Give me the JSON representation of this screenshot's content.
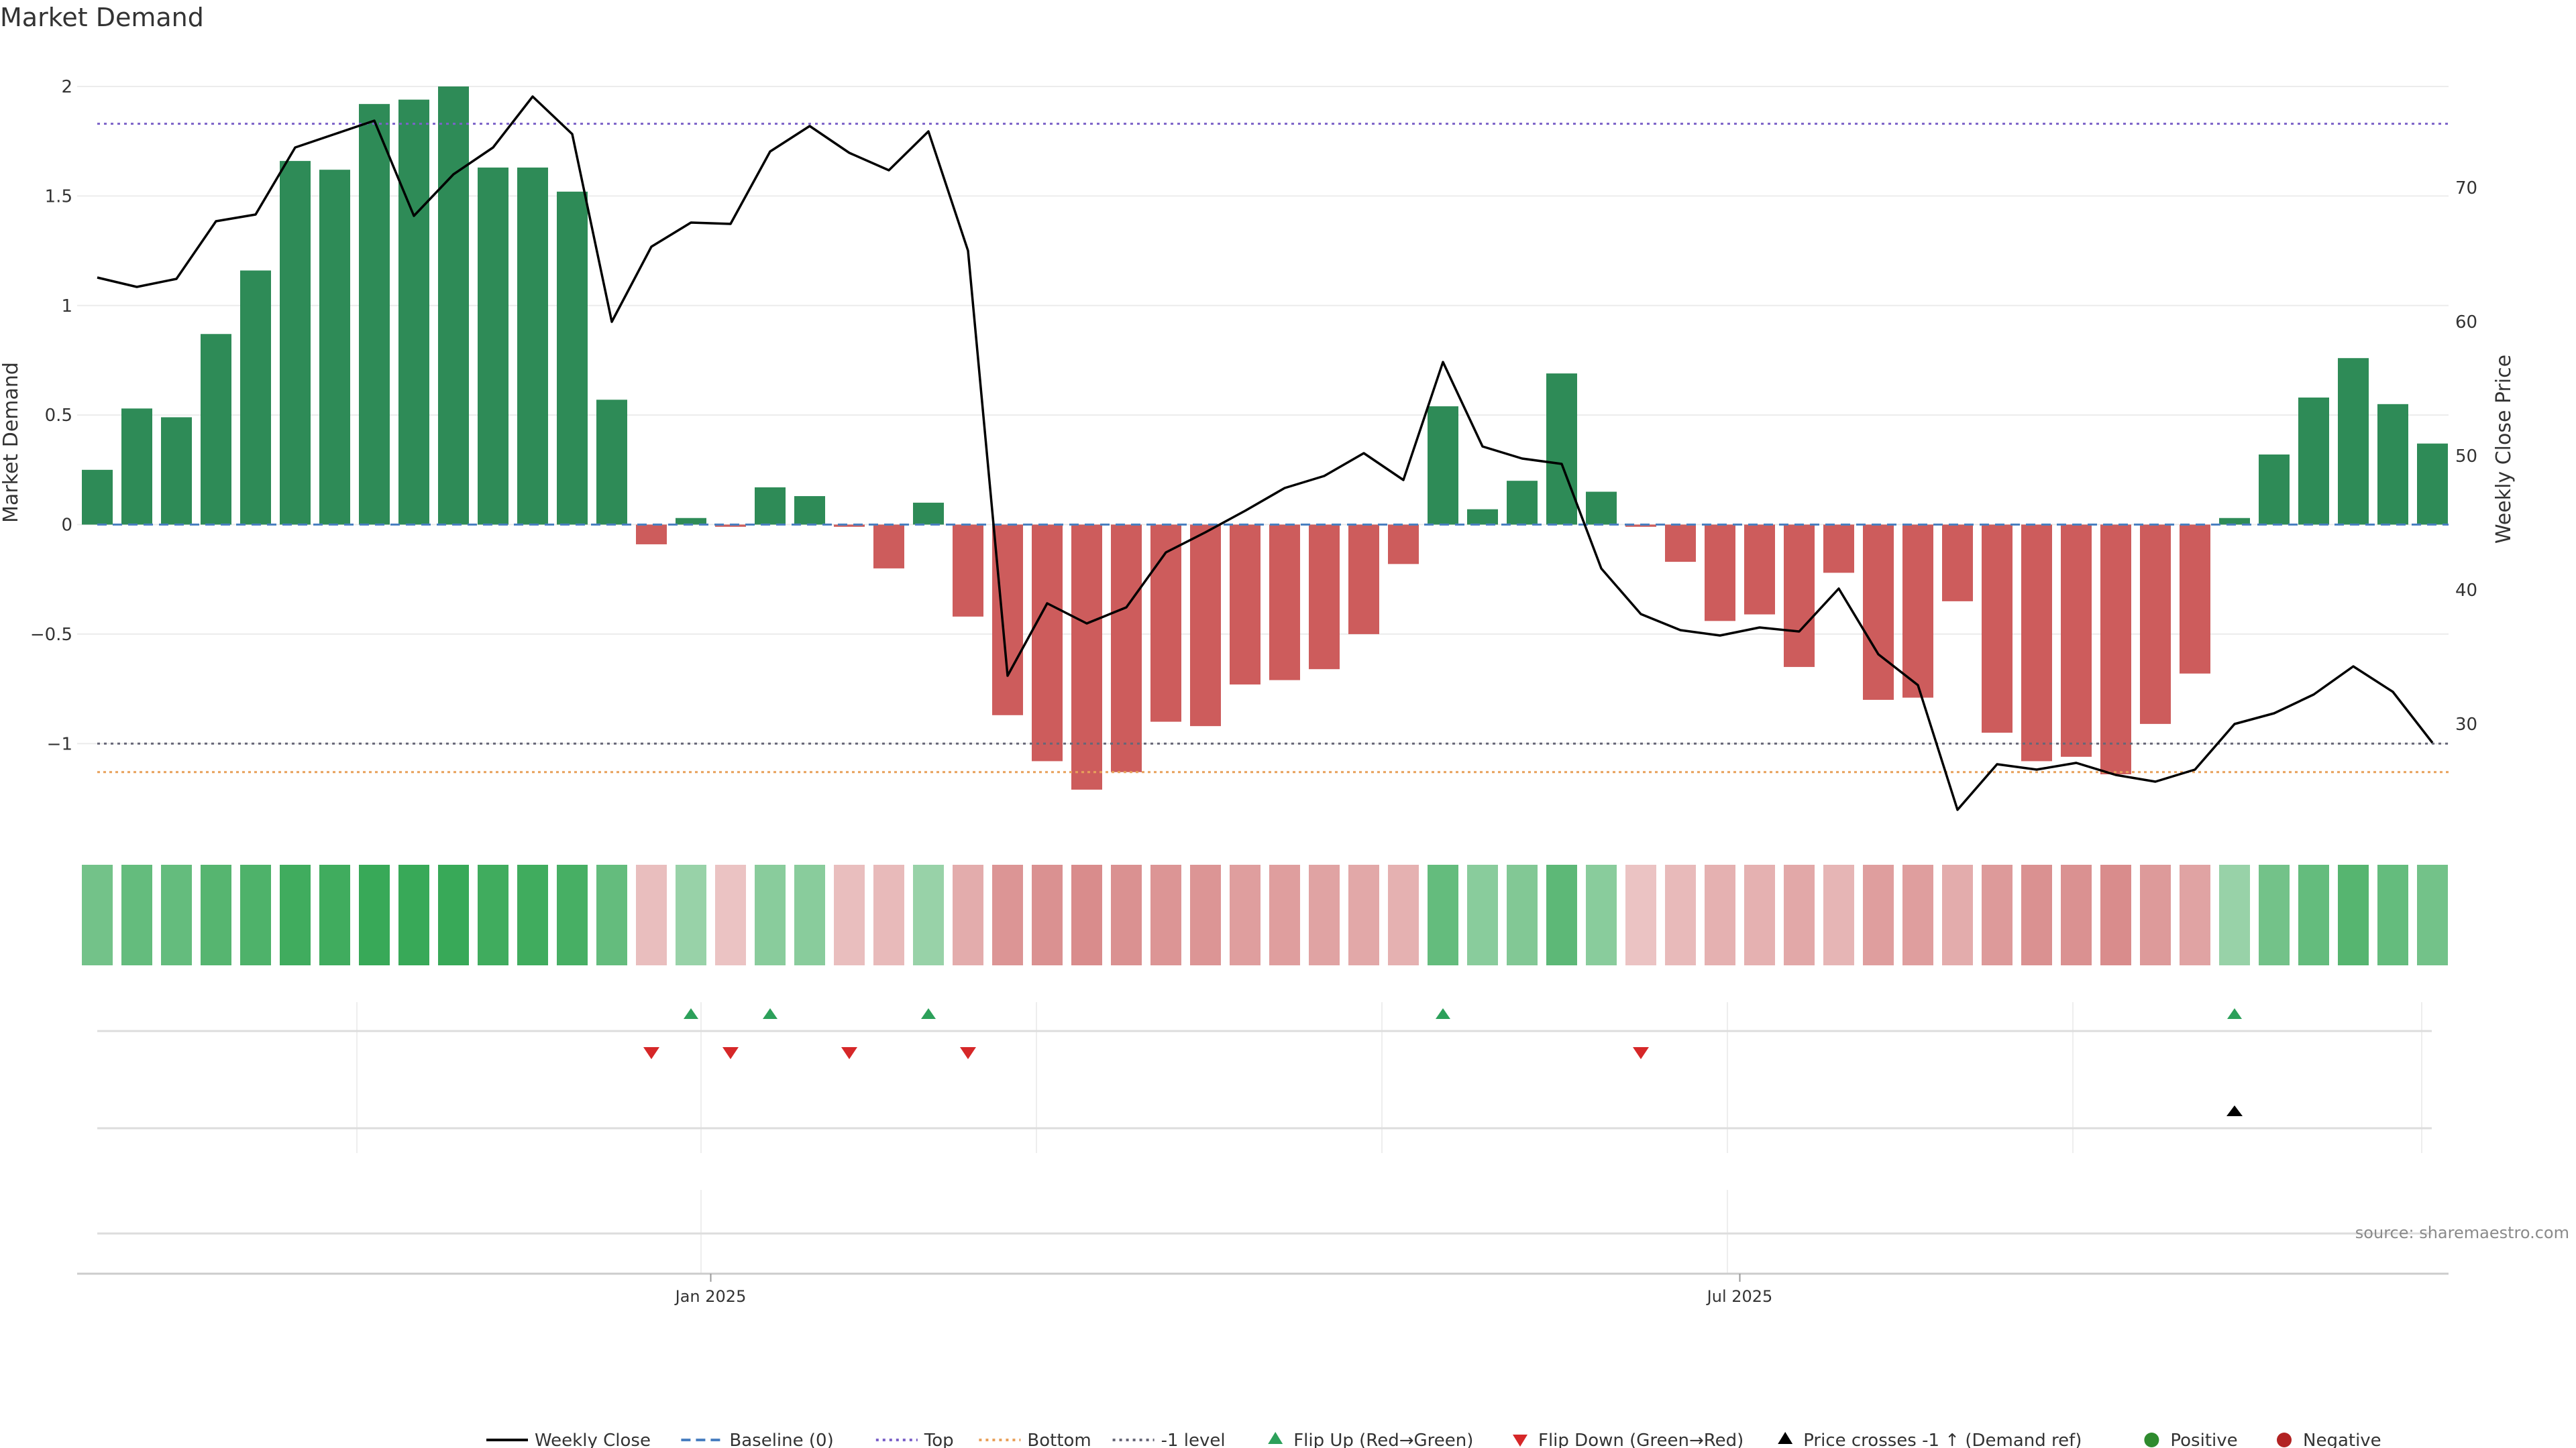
{
  "chart_data": {
    "type": "bar",
    "title": "Market Demand",
    "source": "source: sharemaestro.com",
    "left_axis": {
      "label": "Market Demand",
      "ylim": [
        -1.4,
        2.15
      ],
      "ticks": [
        -1,
        -0.5,
        0,
        0.5,
        1,
        1.5,
        2
      ],
      "tick_labels": [
        "−1",
        "−0.5",
        "0",
        "0.5",
        "1",
        "1.5",
        "2"
      ]
    },
    "right_axis": {
      "label": "Weekly Close Price",
      "ylim": [
        22,
        80
      ],
      "ticks": [
        30,
        40,
        50,
        60,
        70
      ]
    },
    "x_axis": {
      "ticks": [
        {
          "label": "Jan 2025",
          "x": 15.5
        },
        {
          "label": "Jul 2025",
          "x": 41.5
        }
      ]
    },
    "grid": true,
    "legend_placement": "bottom",
    "reference_lines": {
      "top": 1.83,
      "bottom": -1.13,
      "minus_one": -1,
      "baseline": 0
    },
    "colors": {
      "bar_positive": "#2e8b57",
      "bar_negative": "#cd5c5c",
      "line": "#000000",
      "top": "#7b61c8",
      "bottom": "#e8a15a",
      "minus_one": "#666677",
      "baseline": "#4a7fc0",
      "flip_up": "#2ca05a",
      "flip_down": "#d62728",
      "cross": "#000000",
      "positive": "#2e8b2e",
      "negative": "#b22222"
    },
    "demand": [
      0.25,
      0.53,
      0.49,
      0.87,
      1.16,
      1.66,
      1.62,
      1.92,
      1.94,
      2.0,
      1.63,
      1.63,
      1.52,
      0.57,
      -0.09,
      0.03,
      -0.01,
      0.17,
      0.13,
      -0.01,
      -0.2,
      0.1,
      -0.42,
      -0.87,
      -1.08,
      -1.21,
      -1.13,
      -0.9,
      -0.92,
      -0.73,
      -0.71,
      -0.66,
      -0.5,
      -0.18,
      0.54,
      0.07,
      0.2,
      0.69,
      0.15,
      -0.01,
      -0.17,
      -0.44,
      -0.41,
      -0.65,
      -0.22,
      -0.8,
      -0.79,
      -0.35,
      -0.95,
      -1.08,
      -1.06,
      -1.14,
      -0.91,
      -0.68,
      0.03,
      0.32,
      0.58,
      0.76,
      0.55,
      0.37
    ],
    "close": [
      63.3,
      62.6,
      63.2,
      67.5,
      68.0,
      73.0,
      74.0,
      75.0,
      67.9,
      71.0,
      73.0,
      76.8,
      74.0,
      60.0,
      65.6,
      67.4,
      67.3,
      72.7,
      74.6,
      72.6,
      71.3,
      74.2,
      65.3,
      33.6,
      39.0,
      37.5,
      38.7,
      42.8,
      44.3,
      45.9,
      47.6,
      48.5,
      50.2,
      48.2,
      57.0,
      50.7,
      49.8,
      49.4,
      41.6,
      38.2,
      37.0,
      36.6,
      37.2,
      36.9,
      40.1,
      35.2,
      32.9,
      23.6,
      27.0,
      26.6,
      27.1,
      26.2,
      25.7,
      26.6,
      30.0,
      30.8,
      32.2,
      34.3,
      32.4,
      28.6
    ],
    "heatmap_intensity": [
      0.6,
      0.7,
      0.7,
      0.8,
      0.85,
      0.95,
      0.95,
      1.0,
      1.0,
      1.0,
      0.95,
      0.95,
      0.9,
      0.7,
      0.35,
      0.35,
      0.3,
      0.45,
      0.45,
      0.35,
      0.4,
      0.35,
      0.55,
      0.8,
      0.85,
      0.9,
      0.85,
      0.8,
      0.8,
      0.7,
      0.7,
      0.65,
      0.6,
      0.5,
      0.7,
      0.45,
      0.5,
      0.75,
      0.45,
      0.3,
      0.4,
      0.5,
      0.5,
      0.6,
      0.45,
      0.7,
      0.7,
      0.55,
      0.75,
      0.85,
      0.85,
      0.9,
      0.75,
      0.65,
      0.35,
      0.6,
      0.7,
      0.8,
      0.7,
      0.6
    ],
    "flip_up": [
      15,
      17,
      21,
      34,
      54
    ],
    "flip_down": [
      14,
      16,
      19,
      22,
      39
    ],
    "price_crosses": [
      54
    ],
    "legend": [
      {
        "label": "Weekly Close",
        "kind": "line",
        "color": "#000000"
      },
      {
        "label": "Baseline (0)",
        "kind": "dash",
        "color": "#4a7fc0"
      },
      {
        "label": "Top",
        "kind": "dot",
        "color": "#7b61c8"
      },
      {
        "label": "Bottom",
        "kind": "dot",
        "color": "#e8a15a"
      },
      {
        "label": "-1 level",
        "kind": "dot",
        "color": "#666677"
      },
      {
        "label": "Flip Up (Red→Green)",
        "kind": "tri-up",
        "color": "#2ca05a"
      },
      {
        "label": "Flip Down (Green→Red)",
        "kind": "tri-down",
        "color": "#d62728"
      },
      {
        "label": "Price crosses -1 ↑ (Demand ref)",
        "kind": "tri-up",
        "color": "#000000"
      },
      {
        "label": "Positive",
        "kind": "circle",
        "color": "#2e8b2e"
      },
      {
        "label": "Negative",
        "kind": "circle",
        "color": "#b22222"
      }
    ]
  }
}
